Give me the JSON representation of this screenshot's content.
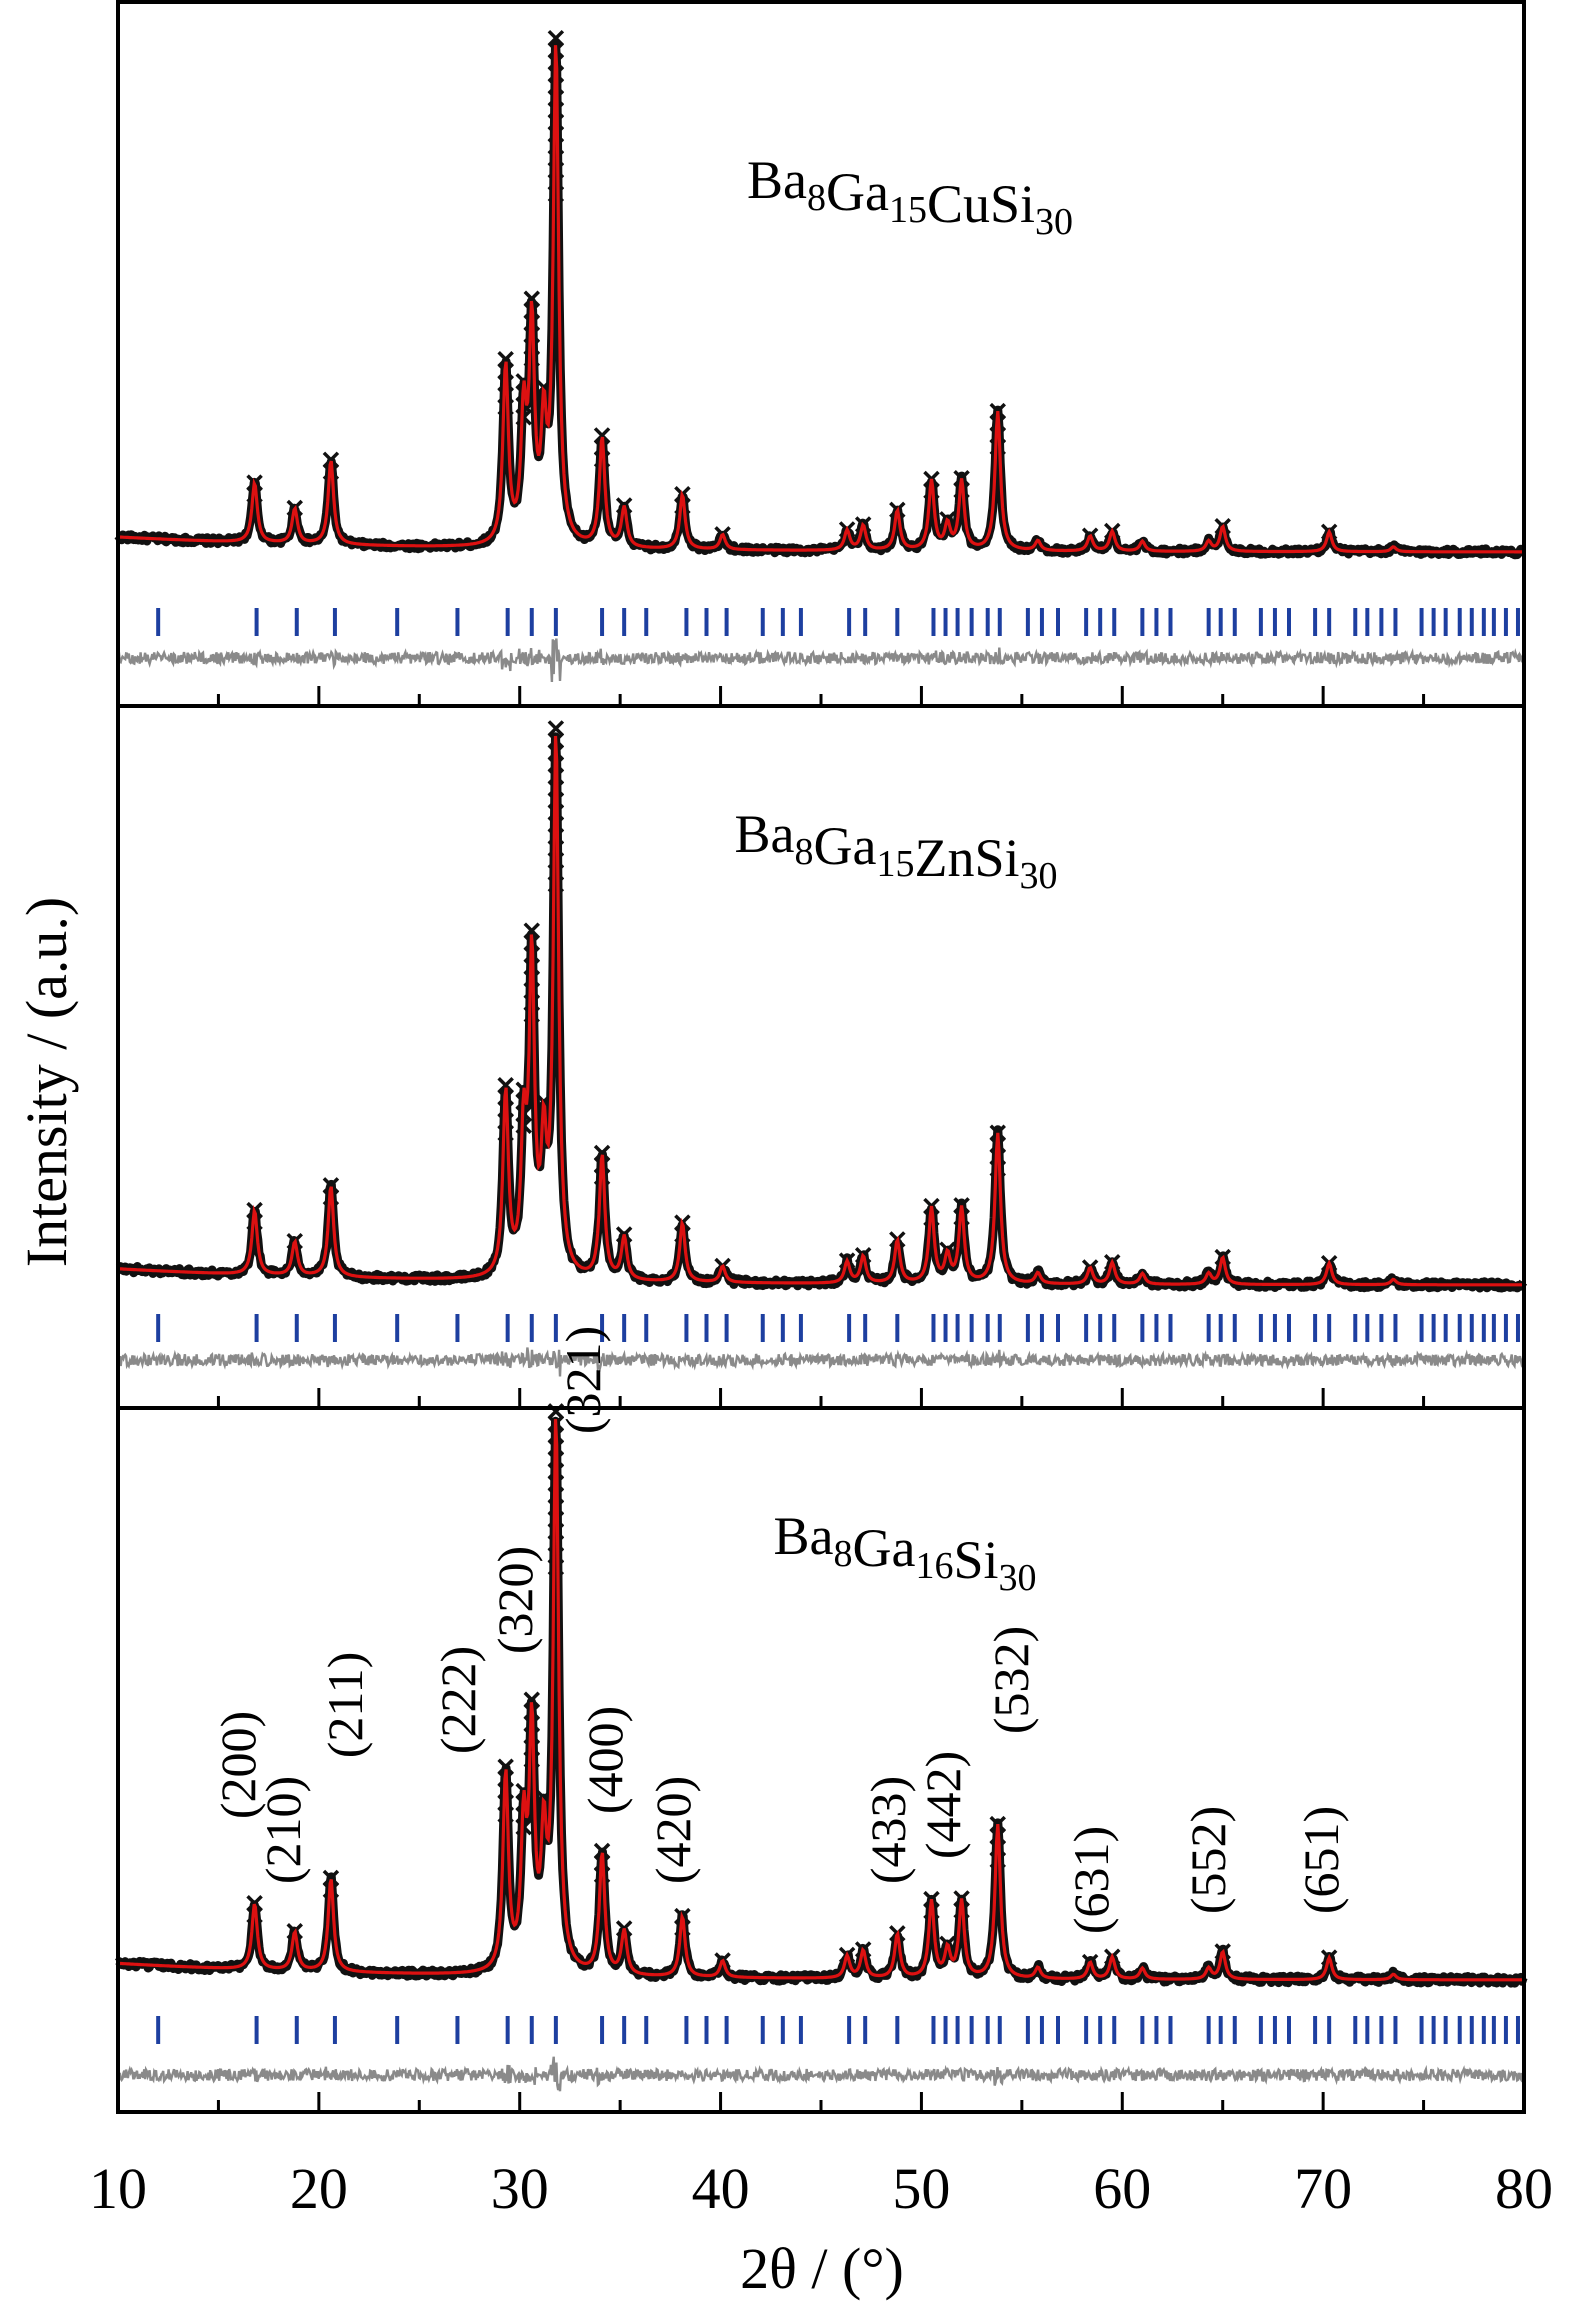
{
  "chart_data": {
    "type": "line",
    "xlabel": "2θ / (°)",
    "ylabel": "Intensity / (a.u.)",
    "xlim": [
      10,
      80
    ],
    "xticks": [
      "10",
      "20",
      "30",
      "40",
      "50",
      "60",
      "70",
      "80"
    ],
    "legend": "none",
    "colors": {
      "observed": "#111111",
      "calculated": "#dd1111",
      "bragg": "#1d3fa0",
      "difference": "#8a8a8a",
      "axes": "#000000"
    },
    "peaks": [
      {
        "hkl": "(200)",
        "x": 16.8,
        "rel": 0.12
      },
      {
        "hkl": "(210)",
        "x": 18.8,
        "rel": 0.07
      },
      {
        "hkl": "(211)",
        "x": 20.6,
        "rel": 0.17
      },
      {
        "hkl": "(222)",
        "x": 29.3,
        "rel": 0.36
      },
      {
        "hkl": "",
        "x": 30.2,
        "rel": 0.25
      },
      {
        "hkl": "(320)",
        "x": 30.6,
        "rel": 0.43
      },
      {
        "hkl": "",
        "x": 31.2,
        "rel": 0.22
      },
      {
        "hkl": "(321)",
        "x": 31.8,
        "rel": 1.0
      },
      {
        "hkl": "(400)",
        "x": 34.1,
        "rel": 0.22
      },
      {
        "hkl": "",
        "x": 35.2,
        "rel": 0.08
      },
      {
        "hkl": "(420)",
        "x": 38.1,
        "rel": 0.11
      },
      {
        "hkl": "",
        "x": 40.1,
        "rel": 0.03
      },
      {
        "hkl": "",
        "x": 46.3,
        "rel": 0.04
      },
      {
        "hkl": "",
        "x": 47.1,
        "rel": 0.05
      },
      {
        "hkl": "(433)",
        "x": 48.8,
        "rel": 0.08
      },
      {
        "hkl": "",
        "x": 50.5,
        "rel": 0.14
      },
      {
        "hkl": "",
        "x": 51.3,
        "rel": 0.05
      },
      {
        "hkl": "(442)",
        "x": 52.0,
        "rel": 0.14
      },
      {
        "hkl": "(532)",
        "x": 53.8,
        "rel": 0.28
      },
      {
        "hkl": "",
        "x": 55.8,
        "rel": 0.02
      },
      {
        "hkl": "",
        "x": 58.4,
        "rel": 0.03
      },
      {
        "hkl": "(631)",
        "x": 59.5,
        "rel": 0.04
      },
      {
        "hkl": "",
        "x": 61.0,
        "rel": 0.02
      },
      {
        "hkl": "",
        "x": 64.3,
        "rel": 0.02
      },
      {
        "hkl": "(552)",
        "x": 65.0,
        "rel": 0.05
      },
      {
        "hkl": "(651)",
        "x": 70.3,
        "rel": 0.04
      },
      {
        "hkl": "",
        "x": 73.5,
        "rel": 0.01
      }
    ],
    "bragg_positions": [
      12.0,
      16.9,
      18.9,
      20.8,
      23.9,
      26.9,
      29.4,
      30.6,
      31.8,
      34.1,
      35.2,
      36.3,
      38.3,
      39.3,
      40.3,
      42.1,
      43.1,
      44.0,
      46.4,
      47.2,
      48.8,
      50.6,
      51.2,
      51.8,
      52.5,
      53.3,
      53.9,
      55.3,
      56.0,
      56.8,
      58.2,
      58.9,
      59.6,
      61.0,
      61.7,
      62.4,
      64.3,
      64.9,
      65.6,
      66.9,
      67.6,
      68.3,
      69.6,
      70.3,
      71.6,
      72.2,
      72.9,
      73.6,
      74.9,
      75.5,
      76.1,
      76.8,
      77.4,
      78.0,
      78.5,
      79.1,
      79.7
    ],
    "panels": [
      {
        "formula": {
          "base": "Ba",
          "s1": "8",
          "m1": "Ga",
          "s2": "15",
          "m2": "CuSi",
          "s3": "30"
        }
      },
      {
        "formula": {
          "base": "Ba",
          "s1": "8",
          "m1": "Ga",
          "s2": "15",
          "m2": "ZnSi",
          "s3": "30"
        }
      },
      {
        "formula": {
          "base": "Ba",
          "s1": "8",
          "m1": "Ga",
          "s2": "16",
          "m2": "Si",
          "s3": "30"
        }
      }
    ]
  }
}
